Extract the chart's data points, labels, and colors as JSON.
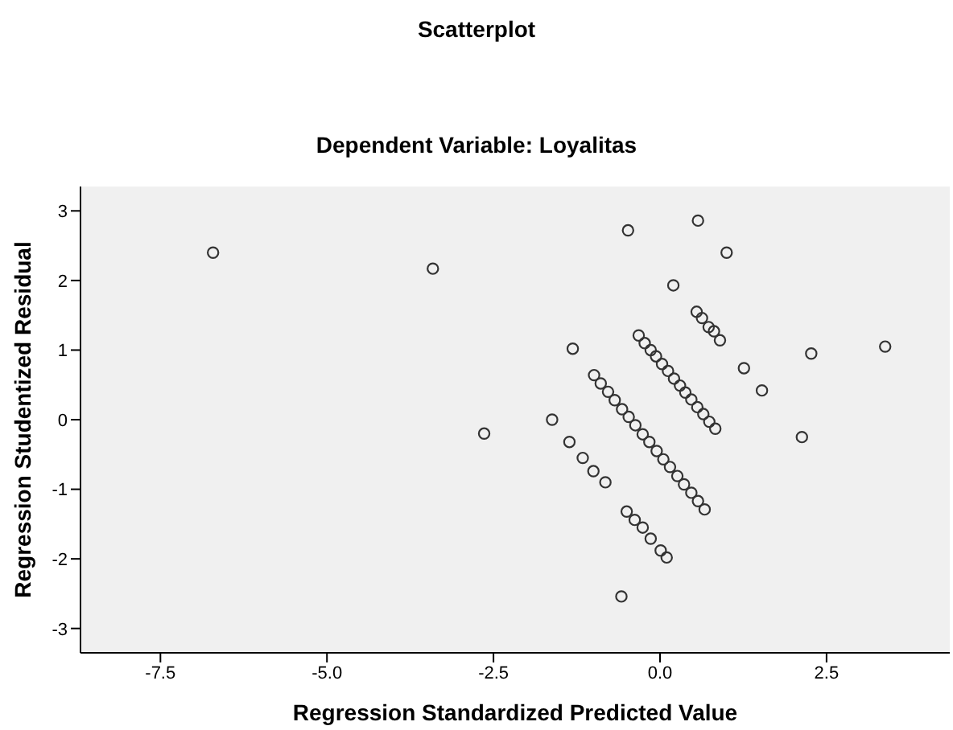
{
  "chart_data": {
    "type": "scatter",
    "title": "Scatterplot",
    "subtitle": "Dependent Variable: Loyalitas",
    "xlabel": "Regression Standardized Predicted Value",
    "ylabel": "Regression Studentized Residual",
    "marker": "circle",
    "xlim": [
      -8.7,
      4.35
    ],
    "ylim": [
      -3.35,
      3.35
    ],
    "xticks": [
      {
        "value": -7.5,
        "label": "-7.5"
      },
      {
        "value": -5,
        "label": "-5.0"
      },
      {
        "value": -2.5,
        "label": "-2.5"
      },
      {
        "value": 0,
        "label": "0.0"
      },
      {
        "value": 2.5,
        "label": "2.5"
      }
    ],
    "yticks": [
      -3,
      -2,
      -1,
      0,
      1,
      2,
      3
    ],
    "series": [
      {
        "color": "#333333",
        "x": [
          -6.71,
          -3.41,
          -2.64,
          -0.48,
          0.57,
          1.0,
          0.2,
          -1.31,
          -1.62,
          -1.36,
          -1.16,
          -1.0,
          -0.82,
          -0.58,
          2.27,
          3.38,
          1.26,
          1.53,
          2.13,
          0.55,
          0.63,
          0.73,
          0.81,
          0.9,
          -0.32,
          -0.23,
          -0.14,
          -0.06,
          0.03,
          0.12,
          0.21,
          0.3,
          0.38,
          0.47,
          0.56,
          0.65,
          0.74,
          0.83,
          -0.99,
          -0.89,
          -0.78,
          -0.68,
          -0.57,
          -0.47,
          -0.37,
          -0.26,
          -0.16,
          -0.05,
          0.05,
          0.15,
          0.26,
          0.36,
          0.47,
          0.57,
          0.67,
          -0.5,
          -0.38,
          -0.26,
          -0.14,
          0.01,
          0.1
        ],
        "values": [
          2.4,
          2.17,
          -0.2,
          2.72,
          2.86,
          2.4,
          1.93,
          1.02,
          0.0,
          -0.32,
          -0.55,
          -0.74,
          -0.9,
          -2.54,
          0.95,
          1.05,
          0.74,
          0.42,
          -0.25,
          1.55,
          1.46,
          1.33,
          1.27,
          1.14,
          1.21,
          1.1,
          1.0,
          0.91,
          0.8,
          0.7,
          0.59,
          0.49,
          0.39,
          0.29,
          0.18,
          0.08,
          -0.03,
          -0.13,
          0.64,
          0.52,
          0.4,
          0.28,
          0.15,
          0.04,
          -0.08,
          -0.21,
          -0.32,
          -0.45,
          -0.57,
          -0.68,
          -0.81,
          -0.93,
          -1.05,
          -1.17,
          -1.29,
          -1.32,
          -1.44,
          -1.55,
          -1.71,
          -1.88,
          -1.98
        ]
      }
    ]
  }
}
